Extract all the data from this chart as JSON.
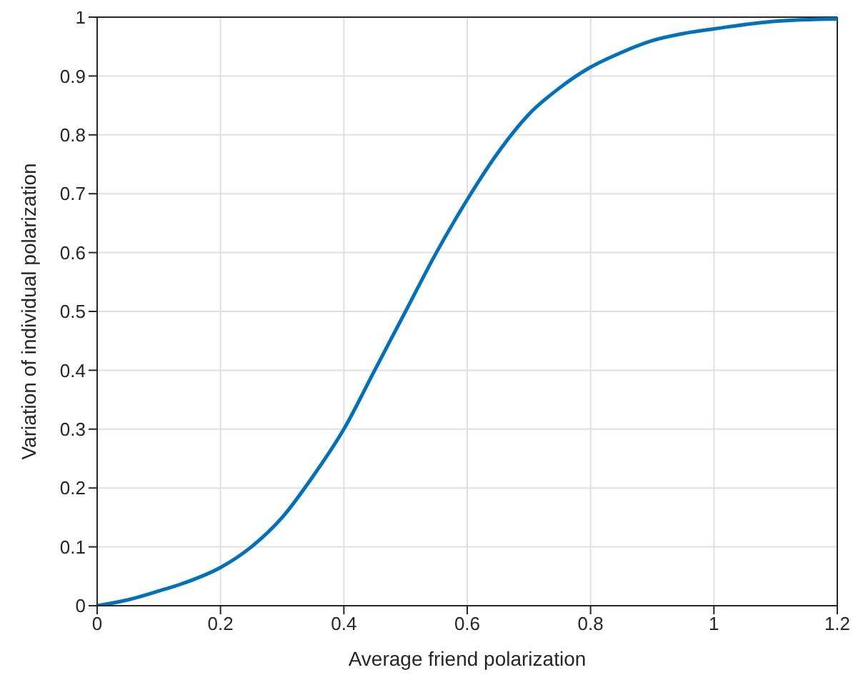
{
  "chart_data": {
    "type": "line",
    "xlabel": "Average friend polarization",
    "ylabel": "Variation of individual polarization",
    "x": [
      0,
      0.05,
      0.1,
      0.15,
      0.2,
      0.25,
      0.3,
      0.35,
      0.4,
      0.45,
      0.5,
      0.55,
      0.6,
      0.65,
      0.7,
      0.75,
      0.8,
      0.85,
      0.9,
      0.95,
      1,
      1.1,
      1.2
    ],
    "series": [
      {
        "color": "#0072bd",
        "values": [
          0,
          0.01,
          0.025,
          0.042,
          0.065,
          0.1,
          0.15,
          0.22,
          0.3,
          0.4,
          0.5,
          0.6,
          0.69,
          0.77,
          0.835,
          0.88,
          0.915,
          0.94,
          0.96,
          0.972,
          0.98,
          0.993,
          0.997
        ]
      }
    ],
    "xlim": [
      0,
      1.2
    ],
    "xticks": [
      0,
      0.2,
      0.4,
      0.6,
      0.8,
      1,
      1.2
    ],
    "ylim": [
      0,
      1
    ],
    "yticks": [
      0,
      0.1,
      0.2,
      0.3,
      0.4,
      0.5,
      0.6,
      0.7,
      0.8,
      0.9,
      1
    ],
    "grid": true,
    "marker": "none",
    "line_style": "solid"
  }
}
